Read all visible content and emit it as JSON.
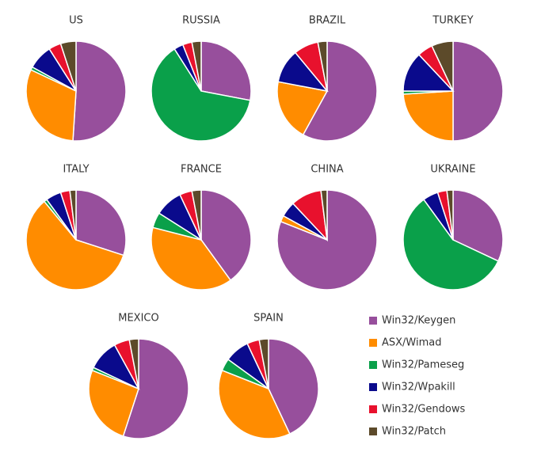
{
  "chart_data": [
    {
      "type": "pie",
      "title": "US",
      "values": [
        51,
        31,
        1,
        8,
        4,
        5
      ]
    },
    {
      "type": "pie",
      "title": "RUSSIA",
      "values": [
        28,
        0,
        63,
        3,
        3,
        3
      ]
    },
    {
      "type": "pie",
      "title": "BRAZIL",
      "values": [
        58,
        20,
        0,
        11,
        8,
        3
      ]
    },
    {
      "type": "pie",
      "title": "TURKEY",
      "values": [
        50,
        24,
        1,
        13,
        5,
        7
      ]
    },
    {
      "type": "pie",
      "title": "ITALY",
      "values": [
        30,
        59,
        1,
        5,
        3,
        2
      ]
    },
    {
      "type": "pie",
      "title": "FRANCE",
      "values": [
        40,
        39,
        5,
        9,
        4,
        3
      ]
    },
    {
      "type": "pie",
      "title": "CHINA",
      "values": [
        81,
        2,
        0,
        5,
        10,
        2
      ]
    },
    {
      "type": "pie",
      "title": "UKRAINE",
      "values": [
        32,
        0,
        58,
        5,
        3,
        2
      ]
    },
    {
      "type": "pie",
      "title": "MEXICO",
      "values": [
        55,
        26,
        1,
        10,
        5,
        3
      ]
    },
    {
      "type": "pie",
      "title": "SPAIN",
      "values": [
        43,
        38,
        4,
        8,
        4,
        3
      ]
    }
  ],
  "legend": {
    "labels": [
      "Win32/Keygen",
      "ASX/Wimad",
      "Win32/Pameseg",
      "Win32/Wpakill",
      "Win32/Gendows",
      "Win32/Patch"
    ],
    "colors": [
      "#974f9c",
      "#ff8c00",
      "#0aa04a",
      "#0a0a8c",
      "#e8112d",
      "#5c4a2a"
    ]
  }
}
